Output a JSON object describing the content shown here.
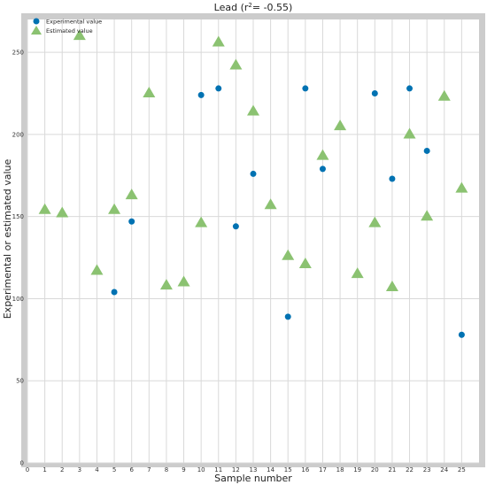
{
  "chart_data": {
    "type": "scatter",
    "title_prefix": "Lead (r",
    "title_sup": "2",
    "title_suffix": "= -0.55)",
    "xlabel": "Sample number",
    "ylabel": "Experimental or estimated value",
    "xlim": [
      0,
      26
    ],
    "ylim": [
      0,
      270
    ],
    "xticks": [
      0,
      1,
      2,
      3,
      4,
      5,
      6,
      7,
      8,
      9,
      10,
      11,
      12,
      13,
      14,
      15,
      16,
      17,
      18,
      19,
      20,
      21,
      22,
      23,
      24,
      25
    ],
    "yticks": [
      0,
      50,
      100,
      150,
      200,
      250
    ],
    "grid": true,
    "legend_position": "top-left",
    "series": [
      {
        "name": "Experimental value",
        "marker": "circle",
        "color": "#0072B2",
        "points": [
          {
            "x": 5,
            "y": 104
          },
          {
            "x": 6,
            "y": 147
          },
          {
            "x": 10,
            "y": 224
          },
          {
            "x": 11,
            "y": 228
          },
          {
            "x": 12,
            "y": 144
          },
          {
            "x": 13,
            "y": 176
          },
          {
            "x": 15,
            "y": 89
          },
          {
            "x": 16,
            "y": 228
          },
          {
            "x": 17,
            "y": 179
          },
          {
            "x": 20,
            "y": 225
          },
          {
            "x": 21,
            "y": 173
          },
          {
            "x": 22,
            "y": 228
          },
          {
            "x": 23,
            "y": 190
          },
          {
            "x": 25,
            "y": 78
          }
        ]
      },
      {
        "name": "Estimated value",
        "marker": "triangle",
        "color": "#8BC271",
        "points": [
          {
            "x": 1,
            "y": 154
          },
          {
            "x": 2,
            "y": 152
          },
          {
            "x": 3,
            "y": 260
          },
          {
            "x": 4,
            "y": 117
          },
          {
            "x": 5,
            "y": 154
          },
          {
            "x": 6,
            "y": 163
          },
          {
            "x": 7,
            "y": 225
          },
          {
            "x": 8,
            "y": 108
          },
          {
            "x": 9,
            "y": 110
          },
          {
            "x": 10,
            "y": 146
          },
          {
            "x": 11,
            "y": 256
          },
          {
            "x": 12,
            "y": 242
          },
          {
            "x": 13,
            "y": 214
          },
          {
            "x": 14,
            "y": 157
          },
          {
            "x": 15,
            "y": 126
          },
          {
            "x": 16,
            "y": 121
          },
          {
            "x": 17,
            "y": 187
          },
          {
            "x": 18,
            "y": 205
          },
          {
            "x": 19,
            "y": 115
          },
          {
            "x": 20,
            "y": 146
          },
          {
            "x": 21,
            "y": 107
          },
          {
            "x": 22,
            "y": 200
          },
          {
            "x": 23,
            "y": 150
          },
          {
            "x": 24,
            "y": 223
          },
          {
            "x": 25,
            "y": 167
          }
        ]
      }
    ]
  }
}
